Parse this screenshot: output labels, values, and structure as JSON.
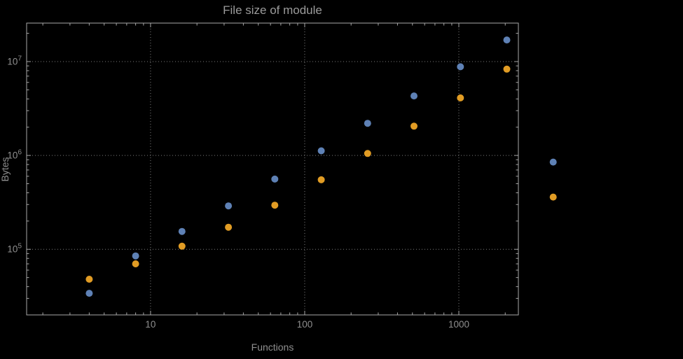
{
  "page": {
    "background": "#000000"
  },
  "chart_data": {
    "type": "scatter",
    "title": "File size of module",
    "xlabel": "Functions",
    "ylabel": "Bytes",
    "xscale": "log",
    "yscale": "log",
    "grid": "dotted gridlines at decade values only",
    "legend": "none",
    "xlim": [
      1.57,
      2434
    ],
    "ylim": [
      20000,
      25700000
    ],
    "x": [
      4,
      8,
      16,
      32,
      64,
      128,
      256,
      512,
      1024,
      2048,
      4096
    ],
    "series": [
      {
        "name": "series-blue",
        "color": "#5e81b5",
        "values": [
          34000,
          85000,
          155000,
          290000,
          560000,
          1120000,
          2200000,
          4300000,
          8800000,
          17000000,
          850000
        ]
      },
      {
        "name": "series-orange",
        "color": "#e19c24",
        "values": [
          48000,
          70000,
          108000,
          172000,
          295000,
          550000,
          1050000,
          2050000,
          4100000,
          8300000,
          360000
        ]
      }
    ],
    "x_ticks": [
      {
        "value": 10,
        "label": "10"
      },
      {
        "value": 100,
        "label": "100"
      },
      {
        "value": 1000,
        "label": "1000"
      }
    ],
    "y_ticks": [
      {
        "value": 100000,
        "base": "10",
        "exp": "5"
      },
      {
        "value": 1000000,
        "base": "10",
        "exp": "6"
      },
      {
        "value": 10000000,
        "base": "10",
        "exp": "7"
      }
    ]
  },
  "style": {
    "frame_color": "#a7a7a7",
    "grid_color": "#7d7d7d",
    "tick_label_color": "#8f8f8f",
    "title_color": "#9b9b9b",
    "axis_label_color": "#8f8f8f"
  }
}
